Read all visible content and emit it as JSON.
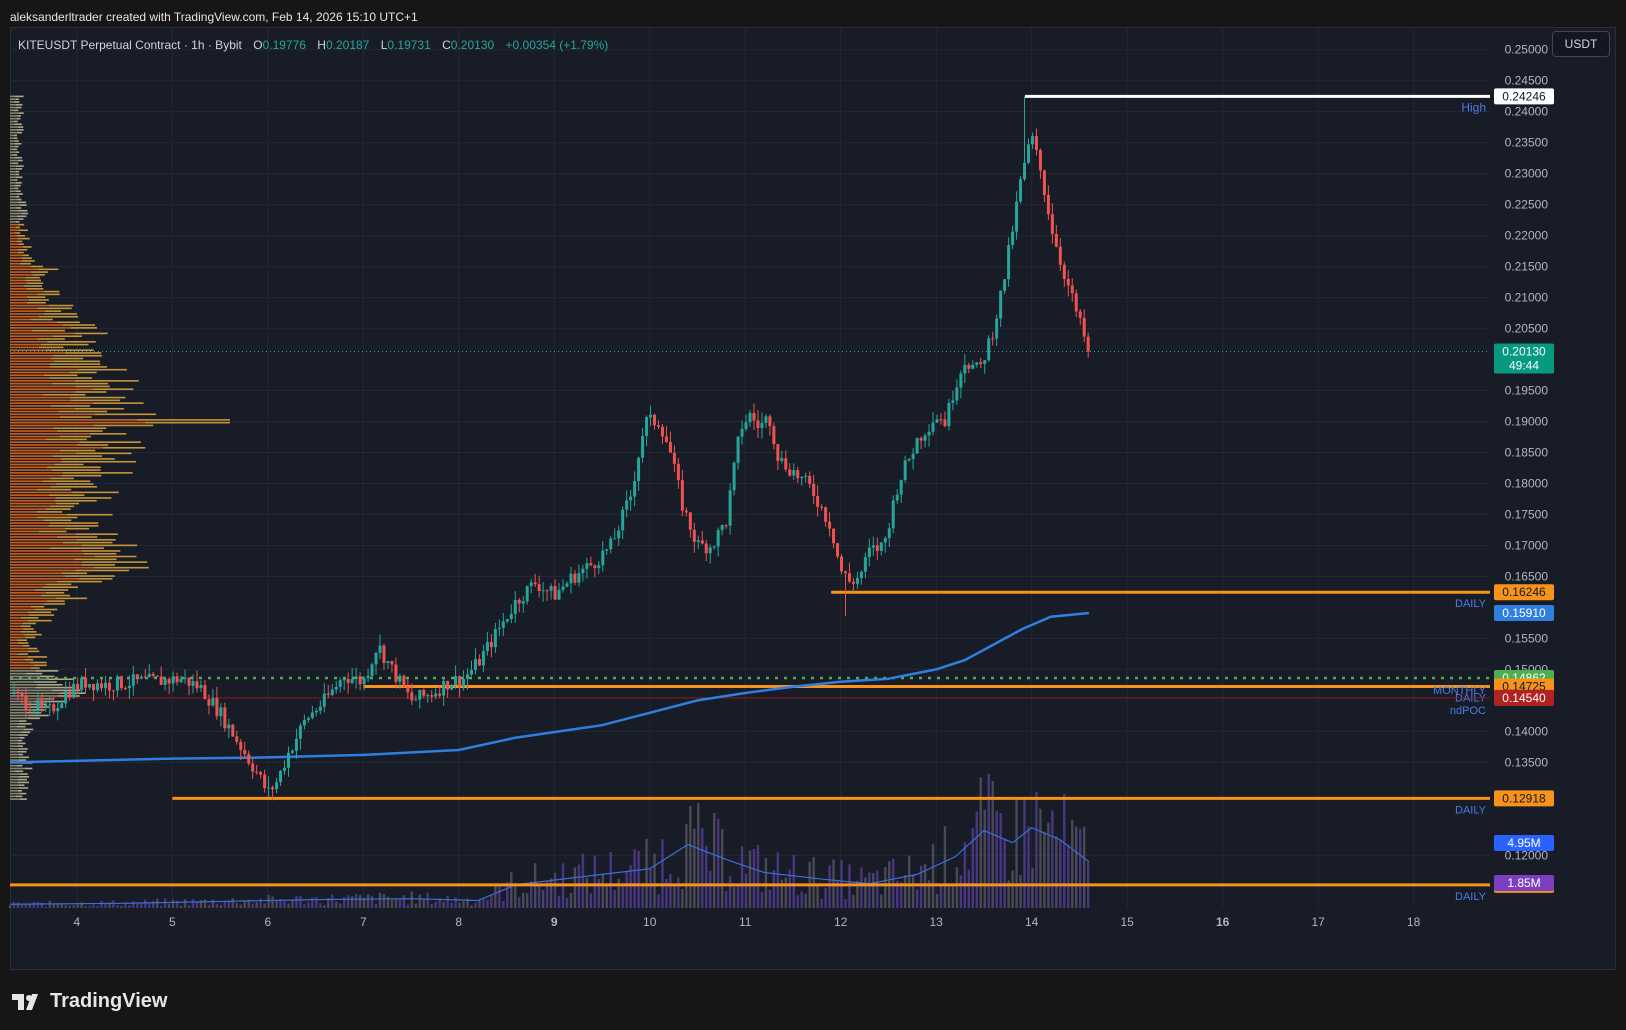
{
  "header": {
    "attribution": "aleksanderltrader created with TradingView.com, Feb 14, 2026 15:10 UTC+1"
  },
  "legend": {
    "symbol": "KITEUSDT Perpetual Contract · 1h · Bybit",
    "o_label": "O",
    "o": "0.19776",
    "h_label": "H",
    "h": "0.20187",
    "l_label": "L",
    "l": "0.19731",
    "c_label": "C",
    "c": "0.20130",
    "change": "+0.00354 (+1.79%)"
  },
  "currency_button": "USDT",
  "footer": {
    "brand": "TradingView",
    "logo_icon": "tradingview-logo-icon"
  },
  "colors": {
    "background": "#181c27",
    "up": "#26a69a",
    "down": "#ef5350",
    "daily_level": "#f7931a",
    "ma_line": "#2f7fe0",
    "volume_ma": "#3b6fd8",
    "poc": "#8b1a1a",
    "green_level": "#4caf50"
  },
  "chart_data": {
    "type": "candlestick",
    "symbol": "KITEUSDT Perpetual Contract",
    "timeframe": "1h",
    "exchange": "Bybit",
    "x_tick_labels": [
      "4",
      "5",
      "6",
      "7",
      "8",
      "9",
      "10",
      "11",
      "12",
      "13",
      "14",
      "15",
      "16",
      "17",
      "18"
    ],
    "y_tick_labels": [
      "0.25000",
      "0.24500",
      "0.24000",
      "0.23500",
      "0.23000",
      "0.22500",
      "0.22000",
      "0.21500",
      "0.21000",
      "0.20500",
      "0.19500",
      "0.19000",
      "0.18500",
      "0.18000",
      "0.17500",
      "0.17000",
      "0.16500",
      "0.15500",
      "0.15000",
      "0.14000",
      "0.13500",
      "0.12000"
    ],
    "y_range": [
      0.1115,
      0.2535
    ],
    "x_range_days": [
      3.3,
      18.8
    ],
    "price_path": [
      [
        3.3,
        0.146
      ],
      [
        3.5,
        0.1445
      ],
      [
        3.7,
        0.143
      ],
      [
        3.9,
        0.1465
      ],
      [
        4.1,
        0.148
      ],
      [
        4.3,
        0.1475
      ],
      [
        4.6,
        0.148
      ],
      [
        4.9,
        0.1482
      ],
      [
        5.1,
        0.1485
      ],
      [
        5.3,
        0.147
      ],
      [
        5.5,
        0.143
      ],
      [
        5.7,
        0.138
      ],
      [
        5.9,
        0.133
      ],
      [
        6.0,
        0.13
      ],
      [
        6.1,
        0.132
      ],
      [
        6.2,
        0.136
      ],
      [
        6.4,
        0.142
      ],
      [
        6.6,
        0.145
      ],
      [
        6.8,
        0.149
      ],
      [
        7.0,
        0.148
      ],
      [
        7.15,
        0.154
      ],
      [
        7.3,
        0.15
      ],
      [
        7.5,
        0.145
      ],
      [
        7.7,
        0.146
      ],
      [
        7.9,
        0.148
      ],
      [
        8.05,
        0.1485
      ],
      [
        8.2,
        0.151
      ],
      [
        8.4,
        0.156
      ],
      [
        8.6,
        0.161
      ],
      [
        8.8,
        0.164
      ],
      [
        9.0,
        0.162
      ],
      [
        9.2,
        0.165
      ],
      [
        9.4,
        0.167
      ],
      [
        9.6,
        0.17
      ],
      [
        9.8,
        0.178
      ],
      [
        9.95,
        0.19
      ],
      [
        10.1,
        0.19
      ],
      [
        10.2,
        0.186
      ],
      [
        10.35,
        0.176
      ],
      [
        10.5,
        0.17
      ],
      [
        10.65,
        0.17
      ],
      [
        10.8,
        0.174
      ],
      [
        10.95,
        0.189
      ],
      [
        11.05,
        0.191
      ],
      [
        11.15,
        0.189
      ],
      [
        11.25,
        0.191
      ],
      [
        11.35,
        0.184
      ],
      [
        11.5,
        0.182
      ],
      [
        11.7,
        0.179
      ],
      [
        11.9,
        0.173
      ],
      [
        12.0,
        0.166
      ],
      [
        12.1,
        0.164
      ],
      [
        12.2,
        0.165
      ],
      [
        12.3,
        0.169
      ],
      [
        12.45,
        0.17
      ],
      [
        12.6,
        0.18
      ],
      [
        12.8,
        0.187
      ],
      [
        13.0,
        0.191
      ],
      [
        13.1,
        0.19
      ],
      [
        13.2,
        0.196
      ],
      [
        13.3,
        0.2
      ],
      [
        13.45,
        0.198
      ],
      [
        13.6,
        0.205
      ],
      [
        13.7,
        0.212
      ],
      [
        13.8,
        0.221
      ],
      [
        13.9,
        0.23
      ],
      [
        14.0,
        0.236
      ],
      [
        14.1,
        0.23
      ],
      [
        14.2,
        0.222
      ],
      [
        14.3,
        0.216
      ],
      [
        14.4,
        0.211
      ],
      [
        14.5,
        0.206
      ],
      [
        14.6,
        0.2013
      ]
    ],
    "high": {
      "label": "High",
      "value": "0.24246",
      "start_day": 13.93
    },
    "low_wick_min": 0.1586,
    "levels": [
      {
        "label": "DAILY",
        "value": "0.16246",
        "color": "#f7931a",
        "start_day": 11.9
      },
      {
        "label": "DAILY",
        "value": "0.12918",
        "color": "#f7931a",
        "start_day": 5.0
      },
      {
        "label": "DAILY",
        "value": "0.11524",
        "color": "#f7931a",
        "start_day": 3.3
      },
      {
        "label": "DAILY",
        "value": "0.14725",
        "color": "#f7931a",
        "start_day": 7.0
      },
      {
        "label": "ndPOC",
        "value": "0.14540",
        "color": "#8b1a1a",
        "start_day": 3.3
      },
      {
        "label": "MONTHLY",
        "value": "0.14862",
        "color": "#4caf50",
        "start_day": 3.3,
        "dotted": true
      }
    ],
    "ma_value": "0.15910",
    "ma_path": [
      [
        3.3,
        0.135
      ],
      [
        5.0,
        0.1356
      ],
      [
        6.0,
        0.1358
      ],
      [
        7.0,
        0.1362
      ],
      [
        8.0,
        0.137
      ],
      [
        8.6,
        0.139
      ],
      [
        9.5,
        0.141
      ],
      [
        10.0,
        0.143
      ],
      [
        10.5,
        0.145
      ],
      [
        11.0,
        0.1462
      ],
      [
        11.5,
        0.1472
      ],
      [
        12.0,
        0.148
      ],
      [
        12.5,
        0.1485
      ],
      [
        13.0,
        0.15
      ],
      [
        13.3,
        0.1515
      ],
      [
        13.6,
        0.154
      ],
      [
        13.9,
        0.1565
      ],
      [
        14.2,
        0.1585
      ],
      [
        14.6,
        0.1591
      ]
    ],
    "current_price": {
      "value": "0.20130",
      "countdown": "49:44"
    },
    "volume": {
      "ma_value": "4.95M",
      "current_value": "1.85M",
      "ma_path": [
        [
          3.3,
          0.4
        ],
        [
          4.5,
          0.5
        ],
        [
          5.5,
          0.7
        ],
        [
          6.5,
          0.9
        ],
        [
          7.5,
          1.0
        ],
        [
          8.2,
          0.8
        ],
        [
          8.6,
          2.5
        ],
        [
          9.5,
          3.6
        ],
        [
          10.0,
          4.2
        ],
        [
          10.4,
          6.8
        ],
        [
          10.8,
          5.2
        ],
        [
          11.2,
          3.8
        ],
        [
          11.8,
          3.1
        ],
        [
          12.3,
          2.6
        ],
        [
          12.8,
          3.6
        ],
        [
          13.2,
          5.5
        ],
        [
          13.5,
          8.3
        ],
        [
          13.8,
          7.0
        ],
        [
          14.0,
          8.6
        ],
        [
          14.3,
          7.3
        ],
        [
          14.6,
          4.95
        ]
      ],
      "max": 18
    },
    "volume_profile": {
      "poc_price": 0.19
    }
  }
}
